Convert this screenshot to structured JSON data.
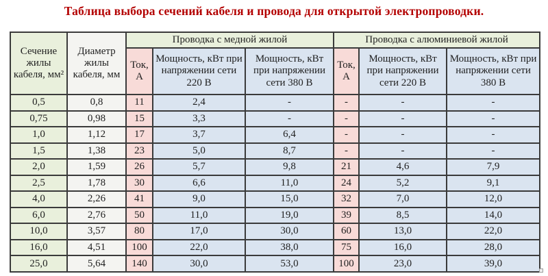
{
  "title": "Таблица выбора сечений кабеля и провода для открытой электропроводки.",
  "colors": {
    "title_red": "#b30000",
    "section_green": "#e9f0dc",
    "diameter_white": "#f4f4f1",
    "current_pink": "#f8dbd8",
    "power_blue": "#dae4f0",
    "border_gray": "#3a3a3a"
  },
  "table": {
    "headers": {
      "section": "Сечение жилы кабеля, мм²",
      "diameter": "Диаметр жилы кабеля, мм",
      "copper_group": "Проводка с медной жилой",
      "aluminum_group": "Проводка с алюминиевой жилой",
      "current": "Ток, А",
      "power_220": "Мощность, кВт при напряжении сети 220 В",
      "power_380": "Мощность, кВт при напряжении сети 380 В"
    },
    "rows": [
      [
        "0,5",
        "0,8",
        "11",
        "2,4",
        "-",
        "-",
        "-",
        "-"
      ],
      [
        "0,75",
        "0,98",
        "15",
        "3,3",
        "-",
        "-",
        "-",
        "-"
      ],
      [
        "1,0",
        "1,12",
        "17",
        "3,7",
        "6,4",
        "-",
        "-",
        "-"
      ],
      [
        "1,5",
        "1,38",
        "23",
        "5,0",
        "8,7",
        "-",
        "-",
        "-"
      ],
      [
        "2,0",
        "1,59",
        "26",
        "5,7",
        "9,8",
        "21",
        "4,6",
        "7,9"
      ],
      [
        "2,5",
        "1,78",
        "30",
        "6,6",
        "11,0",
        "24",
        "5,2",
        "9,1"
      ],
      [
        "4,0",
        "2,26",
        "41",
        "9,0",
        "15,0",
        "32",
        "7,0",
        "12,0"
      ],
      [
        "6,0",
        "2,76",
        "50",
        "11,0",
        "19,0",
        "39",
        "8,5",
        "14,0"
      ],
      [
        "10,0",
        "3,57",
        "80",
        "17,0",
        "30,0",
        "60",
        "13,0",
        "22,0"
      ],
      [
        "16,0",
        "4,51",
        "100",
        "22,0",
        "38,0",
        "75",
        "16,0",
        "28,0"
      ],
      [
        "25,0",
        "5,64",
        "140",
        "30,0",
        "53,0",
        "100",
        "23,0",
        "39,0"
      ]
    ]
  }
}
